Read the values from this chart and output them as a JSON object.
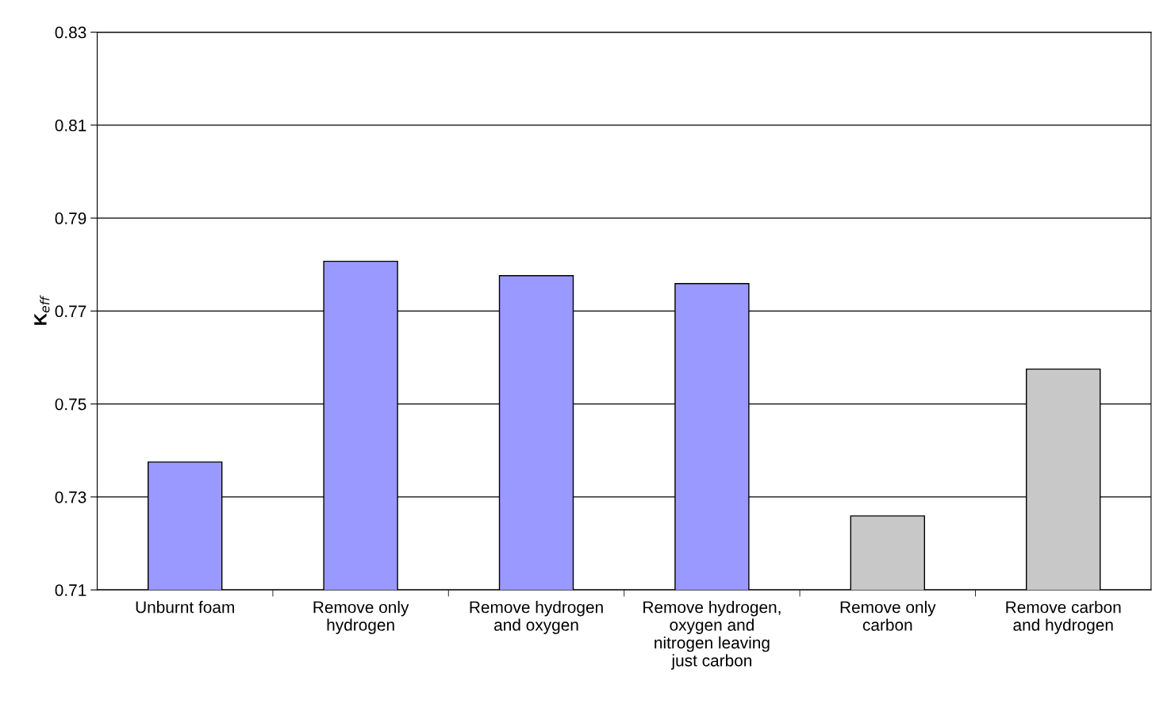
{
  "chart_data": {
    "type": "bar",
    "ylabel": "K$_{eff}$",
    "categories": [
      "Unburnt foam",
      "Remove only\nhydrogen",
      "Remove hydrogen\nand oxygen",
      "Remove hydrogen,\noxygen and\nnitrogen leaving\njust carbon",
      "Remove only\ncarbon",
      "Remove carbon\nand hydrogen"
    ],
    "values": [
      0.7375,
      0.7807,
      0.7776,
      0.7759,
      0.7259,
      0.7575
    ],
    "colors": [
      "#9999ff",
      "#9999ff",
      "#9999ff",
      "#9999ff",
      "#c8c8c8",
      "#c8c8c8"
    ],
    "ylim": [
      0.71,
      0.83
    ],
    "yticks": [
      0.71,
      0.73,
      0.75,
      0.77,
      0.79,
      0.81,
      0.83
    ],
    "grid": "y",
    "legend": false
  }
}
